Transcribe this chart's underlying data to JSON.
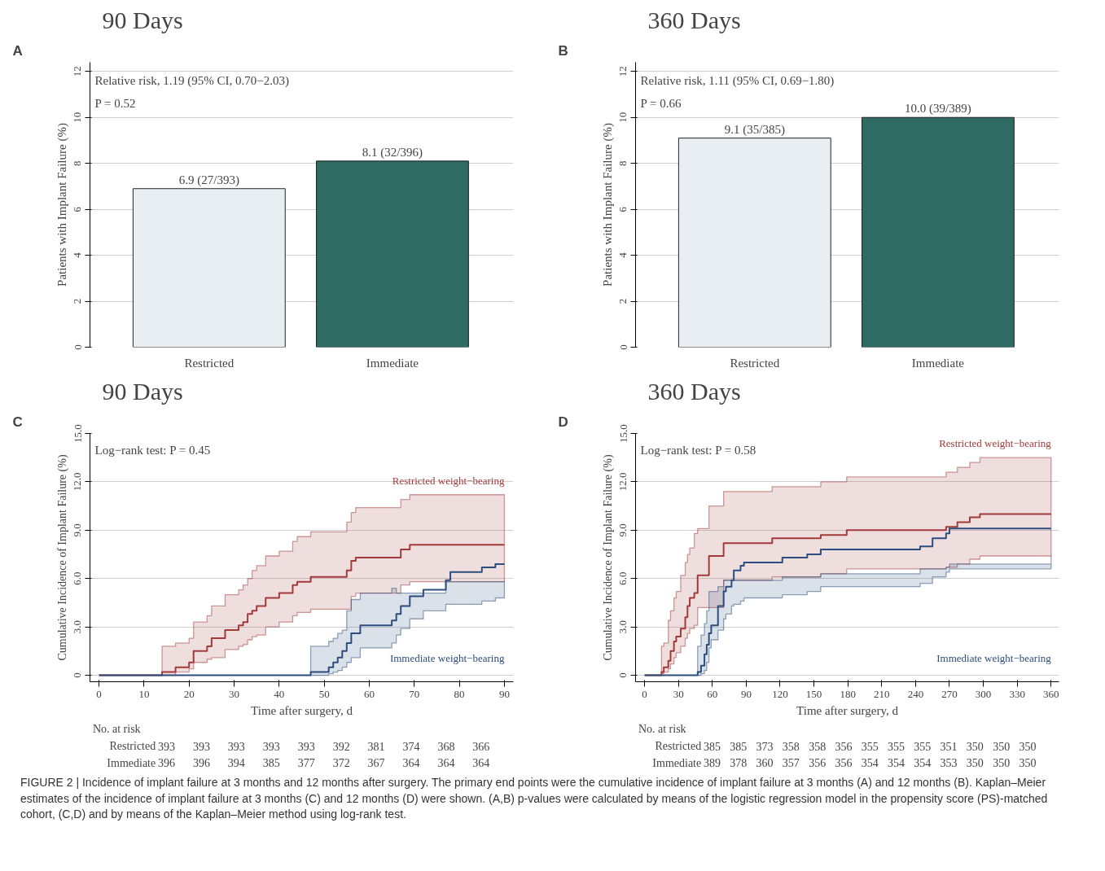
{
  "chart_data": [
    {
      "type": "bar",
      "title": "90 Days",
      "ylabel": "Patients with Implant Failure (%)",
      "categories": [
        "Restricted",
        "Immediate"
      ],
      "values": [
        6.9,
        8.1
      ],
      "colors": [
        "#e8eef2",
        "#2d6b63"
      ],
      "value_labels": [
        "6.9 (27/393)",
        "8.1 (32/396)"
      ],
      "ylim": [
        0,
        12.4
      ],
      "yticks": [
        0,
        2,
        4,
        6,
        8,
        10,
        12
      ],
      "grid": "y",
      "annotations": [
        "A",
        "Relative risk, 1.19 (95% CI, 0.70−2.03)",
        "P = 0.52"
      ]
    },
    {
      "type": "bar",
      "title": "360 Days",
      "ylabel": "Patients with Implant Failure (%)",
      "categories": [
        "Restricted",
        "Immediate"
      ],
      "values": [
        9.1,
        10.0
      ],
      "colors": [
        "#e8eef2",
        "#2d6b63"
      ],
      "value_labels": [
        "9.1 (35/385)",
        "10.0 (39/389)"
      ],
      "ylim": [
        0,
        12.4
      ],
      "yticks": [
        0,
        2,
        4,
        6,
        8,
        10,
        12
      ],
      "grid": "y",
      "annotations": [
        "B",
        "Relative risk, 1.11 (95% CI, 0.69−1.80)",
        "P = 0.66"
      ]
    },
    {
      "type": "step",
      "title": "90 Days",
      "xlabel": "Time after surgery, d",
      "ylabel": "Cumulative Incidence of Implant Failure (%)",
      "xlim": [
        -2,
        92
      ],
      "xticks": [
        0,
        10,
        20,
        30,
        40,
        50,
        60,
        70,
        80,
        90
      ],
      "ylim": [
        -0.4,
        15
      ],
      "yticks": [
        0,
        {
          "value": 3,
          "label": "3.0"
        },
        {
          "value": 6,
          "label": "6.0"
        },
        {
          "value": 9,
          "label": "9.0"
        },
        {
          "value": 12,
          "label": "12.0"
        },
        {
          "value": 15,
          "label": "15.0"
        }
      ],
      "grid": "y",
      "line_style": "solid",
      "series": [
        {
          "name": "Restricted weight−bearing",
          "color": "#a33a3a",
          "x": [
            0,
            14,
            17,
            20,
            21,
            24,
            25,
            28,
            31,
            32,
            33,
            34,
            35,
            37,
            40,
            43,
            44,
            47,
            55,
            56,
            57,
            67,
            69,
            90
          ],
          "values": [
            0,
            0.2,
            0.5,
            0.8,
            1.5,
            1.8,
            2.3,
            2.8,
            3.1,
            3.3,
            3.8,
            4.0,
            4.3,
            4.8,
            5.1,
            5.6,
            5.8,
            6.1,
            6.5,
            7.1,
            7.3,
            7.8,
            8.1,
            8.1
          ],
          "upper": [
            null,
            1.8,
            2.0,
            2.3,
            3.3,
            3.7,
            4.3,
            5.0,
            5.3,
            5.6,
            6.0,
            6.5,
            6.8,
            7.4,
            7.7,
            8.3,
            8.6,
            8.9,
            9.5,
            10.1,
            10.4,
            10.9,
            11.2,
            11.2
          ],
          "lower": [
            null,
            0,
            0.2,
            0.4,
            0.8,
            1.0,
            1.1,
            1.6,
            1.8,
            1.9,
            2.2,
            2.4,
            2.5,
            3.0,
            3.3,
            3.7,
            3.9,
            4.1,
            4.1,
            4.9,
            5.1,
            5.6,
            5.8,
            5.8
          ]
        },
        {
          "name": "Immediate weight−bearing",
          "color": "#2c4d7e",
          "x": [
            0,
            47,
            51,
            52,
            53,
            54,
            55,
            56,
            58,
            65,
            66,
            67,
            69,
            72,
            77,
            78,
            85,
            88,
            90
          ],
          "values": [
            0,
            0.2,
            0.5,
            0.8,
            1.1,
            1.5,
            2.0,
            2.6,
            3.1,
            3.4,
            3.8,
            4.3,
            4.9,
            5.3,
            5.9,
            6.4,
            6.7,
            6.9,
            6.9
          ],
          "upper": [
            null,
            1.8,
            2.1,
            2.3,
            2.6,
            2.8,
            4.0,
            4.7,
            5.1,
            5.4,
            5.1,
            5.1,
            5.1,
            5.1,
            5.8,
            5.8,
            5.8,
            5.8,
            5.8
          ],
          "lower": [
            null,
            0,
            0.1,
            0.2,
            0.3,
            0.5,
            0.8,
            1.1,
            1.7,
            2.0,
            2.5,
            2.9,
            3.5,
            4.0,
            4.4,
            4.4,
            4.6,
            4.8,
            4.8
          ]
        }
      ],
      "annotations": [
        "C",
        "Log−rank test: P = 0.45",
        "No. at risk",
        "Restricted 393 393 393 393 393 392 381 374 368 366",
        "Immediate 396 396 394 385 377 372 367 364 364 364"
      ]
    },
    {
      "type": "step",
      "title": "360 Days",
      "xlabel": "Time after surgery, d",
      "ylabel": "Cumulative Incidence of Implant Failure (%)",
      "xlim": [
        -8,
        367
      ],
      "xticks": [
        0,
        30,
        60,
        90,
        120,
        150,
        180,
        210,
        240,
        270,
        300,
        330,
        360
      ],
      "ylim": [
        -0.4,
        15
      ],
      "yticks": [
        0,
        {
          "value": 3,
          "label": "3.0"
        },
        {
          "value": 6,
          "label": "6.0"
        },
        {
          "value": 9,
          "label": "9.0"
        },
        {
          "value": 12,
          "label": "12.0"
        },
        {
          "value": 15,
          "label": "15.0"
        }
      ],
      "grid": "y",
      "line_style": "solid",
      "series": [
        {
          "name": "Restricted weight−bearing",
          "color": "#a33a3a",
          "x": [
            0,
            15,
            17,
            21,
            23,
            26,
            28,
            32,
            36,
            38,
            40,
            44,
            47,
            57,
            70,
            113,
            156,
            179,
            267,
            277,
            288,
            297,
            360
          ],
          "values": [
            0,
            0.2,
            0.5,
            0.9,
            1.5,
            2.1,
            2.4,
            2.9,
            3.6,
            4.3,
            4.8,
            5.1,
            6.2,
            7.4,
            8.2,
            8.5,
            8.7,
            9.0,
            9.2,
            9.5,
            9.8,
            10.0,
            10.0
          ],
          "upper": [
            null,
            1.8,
            2.0,
            3.4,
            4.0,
            4.8,
            5.2,
            6.2,
            7.0,
            7.5,
            7.9,
            8.8,
            9.1,
            10.5,
            11.4,
            11.7,
            12.0,
            12.3,
            12.6,
            12.9,
            13.2,
            13.5,
            13.5
          ],
          "lower": [
            null,
            0.1,
            0.2,
            0.4,
            0.7,
            1.1,
            1.4,
            1.8,
            2.3,
            2.6,
            2.9,
            3.1,
            4.2,
            4.2,
            5.9,
            6.1,
            6.3,
            6.6,
            6.7,
            6.9,
            7.2,
            7.4,
            7.4
          ]
        },
        {
          "name": "Immediate weight−bearing",
          "color": "#2c4d7e",
          "x": [
            0,
            47,
            50,
            53,
            55,
            57,
            59,
            65,
            70,
            72,
            77,
            79,
            85,
            88,
            122,
            144,
            156,
            244,
            255,
            267,
            270,
            360
          ],
          "values": [
            0,
            0.2,
            0.6,
            1.3,
            1.9,
            2.6,
            3.1,
            4.3,
            5.2,
            5.5,
            5.9,
            6.5,
            6.8,
            7.0,
            7.3,
            7.5,
            7.8,
            8.0,
            8.5,
            8.8,
            9.1,
            9.1
          ],
          "upper": [
            null,
            1.8,
            2.5,
            3.2,
            4.0,
            5.2,
            5.2,
            5.5,
            5.9,
            5.9,
            5.9,
            5.9,
            5.9,
            5.9,
            6.1,
            6.1,
            6.3,
            6.6,
            6.6,
            6.7,
            6.9,
            7.4
          ],
          "lower": [
            null,
            0,
            0.1,
            0.3,
            0.8,
            1.7,
            2.2,
            2.8,
            3.5,
            3.8,
            4.3,
            4.4,
            4.6,
            4.8,
            5.0,
            5.2,
            5.5,
            5.7,
            6.1,
            6.4,
            6.6,
            6.6
          ]
        }
      ],
      "annotations": [
        "D",
        "Log−rank test: P = 0.58",
        "No. at risk",
        "Restricted 385 385 373 358 358 356 355 355 355 351 350 350 350",
        "Immediate 389 378 360 357 356 356 354 354 354 353 350 350 350"
      ]
    },
    {
      "type": "other",
      "annotations": [
        "FIGURE 2 | Incidence of implant failure at 3 months and 12 months after surgery. The primary end points were the cumulative incidence of implant failure at 3 months (A) and 12 months (B). Kaplan–Meier estimates of the incidence of implant failure at 3 months (C) and 12 months (D) were shown. (A,B) p-values were calculated by means of the logistic regression model in the propensity score (PS)-matched cohort, (C,D) and by means of the Kaplan–Meier method using log-rank test."
      ]
    }
  ]
}
